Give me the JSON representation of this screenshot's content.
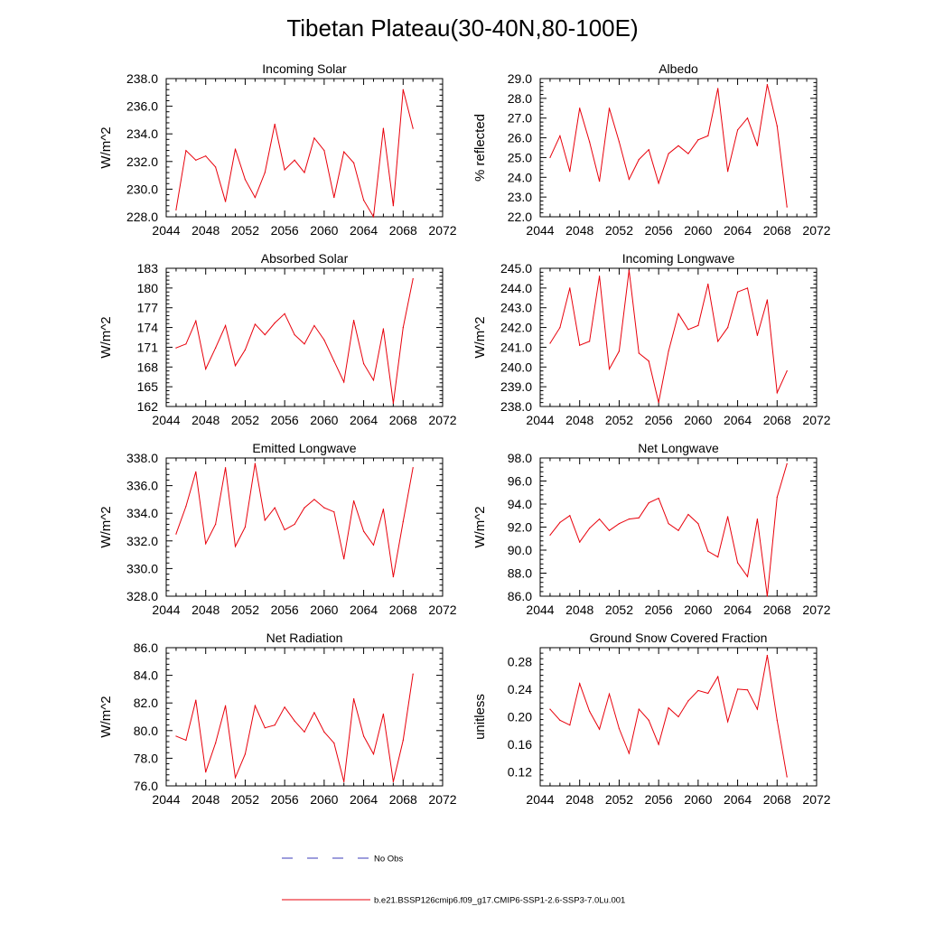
{
  "title": "Tibetan Plateau(30-40N,80-100E)",
  "colors": {
    "model_line": "#e8000b",
    "obs_line": "#3b3bb8",
    "axis": "#000000"
  },
  "legend": {
    "obs_label": "No Obs",
    "model_label": "b.e21.BSSP126cmip6.f09_g17.CMIP6-SSP1-2.6-SSP3-7.0Lu.001"
  },
  "chart_data": [
    {
      "type": "line",
      "title": "Incoming Solar",
      "ylabel": "W/m^2",
      "xlim": [
        2044,
        2072
      ],
      "xticks": [
        "2044",
        "2048",
        "2052",
        "2056",
        "2060",
        "2064",
        "2068",
        "2072"
      ],
      "ylim": [
        228,
        238
      ],
      "yticks": [
        "228.0",
        "230.0",
        "232.0",
        "234.0",
        "236.0",
        "238.0"
      ],
      "x": [
        2045,
        2046,
        2047,
        2048,
        2049,
        2050,
        2051,
        2052,
        2053,
        2054,
        2055,
        2056,
        2057,
        2058,
        2059,
        2060,
        2061,
        2062,
        2063,
        2064,
        2065,
        2066,
        2067,
        2068,
        2069
      ],
      "series": [
        {
          "values": [
            228.5,
            232.8,
            232.1,
            232.4,
            231.6,
            229.1,
            232.9,
            230.7,
            229.4,
            231.2,
            234.7,
            231.4,
            232.1,
            231.2,
            233.7,
            232.8,
            229.4,
            232.7,
            231.9,
            229.2,
            228.0,
            234.4,
            228.8,
            237.2,
            234.4
          ]
        }
      ]
    },
    {
      "type": "line",
      "title": "Albedo",
      "ylabel": "% reflected",
      "xlim": [
        2044,
        2072
      ],
      "xticks": [
        "2044",
        "2048",
        "2052",
        "2056",
        "2060",
        "2064",
        "2068",
        "2072"
      ],
      "ylim": [
        22,
        29
      ],
      "yticks": [
        "22.0",
        "23.0",
        "24.0",
        "25.0",
        "26.0",
        "27.0",
        "28.0",
        "29.0"
      ],
      "x": [
        2045,
        2046,
        2047,
        2048,
        2049,
        2050,
        2051,
        2052,
        2053,
        2054,
        2055,
        2056,
        2057,
        2058,
        2059,
        2060,
        2061,
        2062,
        2063,
        2064,
        2065,
        2066,
        2067,
        2068,
        2069
      ],
      "series": [
        {
          "values": [
            25.0,
            26.1,
            24.3,
            27.5,
            25.8,
            23.8,
            27.5,
            25.8,
            23.9,
            24.9,
            25.4,
            23.7,
            25.2,
            25.6,
            25.2,
            25.9,
            26.1,
            28.5,
            24.3,
            26.4,
            27.0,
            25.6,
            28.7,
            26.6,
            22.5
          ]
        }
      ]
    },
    {
      "type": "line",
      "title": "Absorbed Solar",
      "ylabel": "W/m^2",
      "xlim": [
        2044,
        2072
      ],
      "xticks": [
        "2044",
        "2048",
        "2052",
        "2056",
        "2060",
        "2064",
        "2068",
        "2072"
      ],
      "ylim": [
        162,
        183
      ],
      "yticks": [
        "162",
        "165",
        "168",
        "171",
        "174",
        "177",
        "180",
        "183"
      ],
      "x": [
        2045,
        2046,
        2047,
        2048,
        2049,
        2050,
        2051,
        2052,
        2053,
        2054,
        2055,
        2056,
        2057,
        2058,
        2059,
        2060,
        2061,
        2062,
        2063,
        2064,
        2065,
        2066,
        2067,
        2068,
        2069
      ],
      "series": [
        {
          "values": [
            170.9,
            171.5,
            175.0,
            167.7,
            170.9,
            174.3,
            168.2,
            170.6,
            174.5,
            172.9,
            174.7,
            176.1,
            172.9,
            171.5,
            174.3,
            172.1,
            168.9,
            165.7,
            175.1,
            168.5,
            166.0,
            173.8,
            162.5,
            174.0,
            181.4
          ]
        }
      ]
    },
    {
      "type": "line",
      "title": "Incoming Longwave",
      "ylabel": "W/m^2",
      "xlim": [
        2044,
        2072
      ],
      "xticks": [
        "2044",
        "2048",
        "2052",
        "2056",
        "2060",
        "2064",
        "2068",
        "2072"
      ],
      "ylim": [
        238,
        245
      ],
      "yticks": [
        "238.0",
        "239.0",
        "240.0",
        "241.0",
        "242.0",
        "243.0",
        "244.0",
        "245.0"
      ],
      "x": [
        2045,
        2046,
        2047,
        2048,
        2049,
        2050,
        2051,
        2052,
        2053,
        2054,
        2055,
        2056,
        2057,
        2058,
        2059,
        2060,
        2061,
        2062,
        2063,
        2064,
        2065,
        2066,
        2067,
        2068,
        2069
      ],
      "series": [
        {
          "values": [
            241.2,
            242.0,
            244.0,
            241.1,
            241.3,
            244.6,
            239.9,
            240.8,
            244.9,
            240.7,
            240.3,
            238.2,
            240.8,
            242.7,
            241.9,
            242.1,
            244.2,
            241.3,
            242.0,
            243.8,
            244.0,
            241.6,
            243.4,
            238.7,
            239.8
          ]
        }
      ]
    },
    {
      "type": "line",
      "title": "Emitted Longwave",
      "ylabel": "W/m^2",
      "xlim": [
        2044,
        2072
      ],
      "xticks": [
        "2044",
        "2048",
        "2052",
        "2056",
        "2060",
        "2064",
        "2068",
        "2072"
      ],
      "ylim": [
        328,
        338
      ],
      "yticks": [
        "328.0",
        "330.0",
        "332.0",
        "334.0",
        "336.0",
        "338.0"
      ],
      "x": [
        2045,
        2046,
        2047,
        2048,
        2049,
        2050,
        2051,
        2052,
        2053,
        2054,
        2055,
        2056,
        2057,
        2058,
        2059,
        2060,
        2061,
        2062,
        2063,
        2064,
        2065,
        2066,
        2067,
        2068,
        2069
      ],
      "series": [
        {
          "values": [
            332.5,
            334.5,
            337.0,
            331.8,
            333.2,
            337.3,
            331.6,
            333.0,
            337.6,
            333.5,
            334.4,
            332.8,
            333.2,
            334.4,
            335.0,
            334.4,
            334.1,
            330.7,
            334.9,
            332.7,
            331.7,
            334.3,
            329.4,
            333.4,
            337.3
          ]
        }
      ]
    },
    {
      "type": "line",
      "title": "Net Longwave",
      "ylabel": "W/m^2",
      "xlim": [
        2044,
        2072
      ],
      "xticks": [
        "2044",
        "2048",
        "2052",
        "2056",
        "2060",
        "2064",
        "2068",
        "2072"
      ],
      "ylim": [
        86,
        98
      ],
      "yticks": [
        "86.0",
        "88.0",
        "90.0",
        "92.0",
        "94.0",
        "96.0",
        "98.0"
      ],
      "x": [
        2045,
        2046,
        2047,
        2048,
        2049,
        2050,
        2051,
        2052,
        2053,
        2054,
        2055,
        2056,
        2057,
        2058,
        2059,
        2060,
        2061,
        2062,
        2063,
        2064,
        2065,
        2066,
        2067,
        2068,
        2069
      ],
      "series": [
        {
          "values": [
            91.3,
            92.4,
            93.0,
            90.7,
            91.9,
            92.7,
            91.7,
            92.3,
            92.7,
            92.8,
            94.1,
            94.5,
            92.3,
            91.7,
            93.1,
            92.3,
            89.9,
            89.4,
            92.9,
            88.9,
            87.7,
            92.7,
            86.0,
            94.6,
            97.5
          ]
        }
      ]
    },
    {
      "type": "line",
      "title": "Net Radiation",
      "ylabel": "W/m^2",
      "xlim": [
        2044,
        2072
      ],
      "xticks": [
        "2044",
        "2048",
        "2052",
        "2056",
        "2060",
        "2064",
        "2068",
        "2072"
      ],
      "ylim": [
        76,
        86
      ],
      "yticks": [
        "76.0",
        "78.0",
        "80.0",
        "82.0",
        "84.0",
        "86.0"
      ],
      "x": [
        2045,
        2046,
        2047,
        2048,
        2049,
        2050,
        2051,
        2052,
        2053,
        2054,
        2055,
        2056,
        2057,
        2058,
        2059,
        2060,
        2061,
        2062,
        2063,
        2064,
        2065,
        2066,
        2067,
        2068,
        2069
      ],
      "series": [
        {
          "values": [
            79.6,
            79.3,
            82.2,
            77.0,
            79.1,
            81.8,
            76.6,
            78.3,
            81.8,
            80.2,
            80.4,
            81.7,
            80.7,
            79.9,
            81.3,
            79.9,
            79.1,
            76.3,
            82.3,
            79.6,
            78.3,
            81.2,
            76.3,
            79.3,
            84.1
          ]
        }
      ]
    },
    {
      "type": "line",
      "title": "Ground Snow Covered Fraction",
      "ylabel": "unitless",
      "xlim": [
        2044,
        2072
      ],
      "xticks": [
        "2044",
        "2048",
        "2052",
        "2056",
        "2060",
        "2064",
        "2068",
        "2072"
      ],
      "ylim": [
        0.1,
        0.3
      ],
      "yticks": [
        "0.12",
        "0.16",
        "0.20",
        "0.24",
        "0.28"
      ],
      "ytick_values": [
        0.12,
        0.16,
        0.2,
        0.24,
        0.28
      ],
      "x": [
        2045,
        2046,
        2047,
        2048,
        2049,
        2050,
        2051,
        2052,
        2053,
        2054,
        2055,
        2056,
        2057,
        2058,
        2059,
        2060,
        2061,
        2062,
        2063,
        2064,
        2065,
        2066,
        2067,
        2068,
        2069
      ],
      "series": [
        {
          "values": [
            0.211,
            0.195,
            0.188,
            0.248,
            0.208,
            0.182,
            0.233,
            0.183,
            0.147,
            0.211,
            0.195,
            0.16,
            0.213,
            0.2,
            0.223,
            0.238,
            0.234,
            0.258,
            0.193,
            0.24,
            0.239,
            0.211,
            0.289,
            0.195,
            0.113
          ]
        }
      ]
    }
  ]
}
